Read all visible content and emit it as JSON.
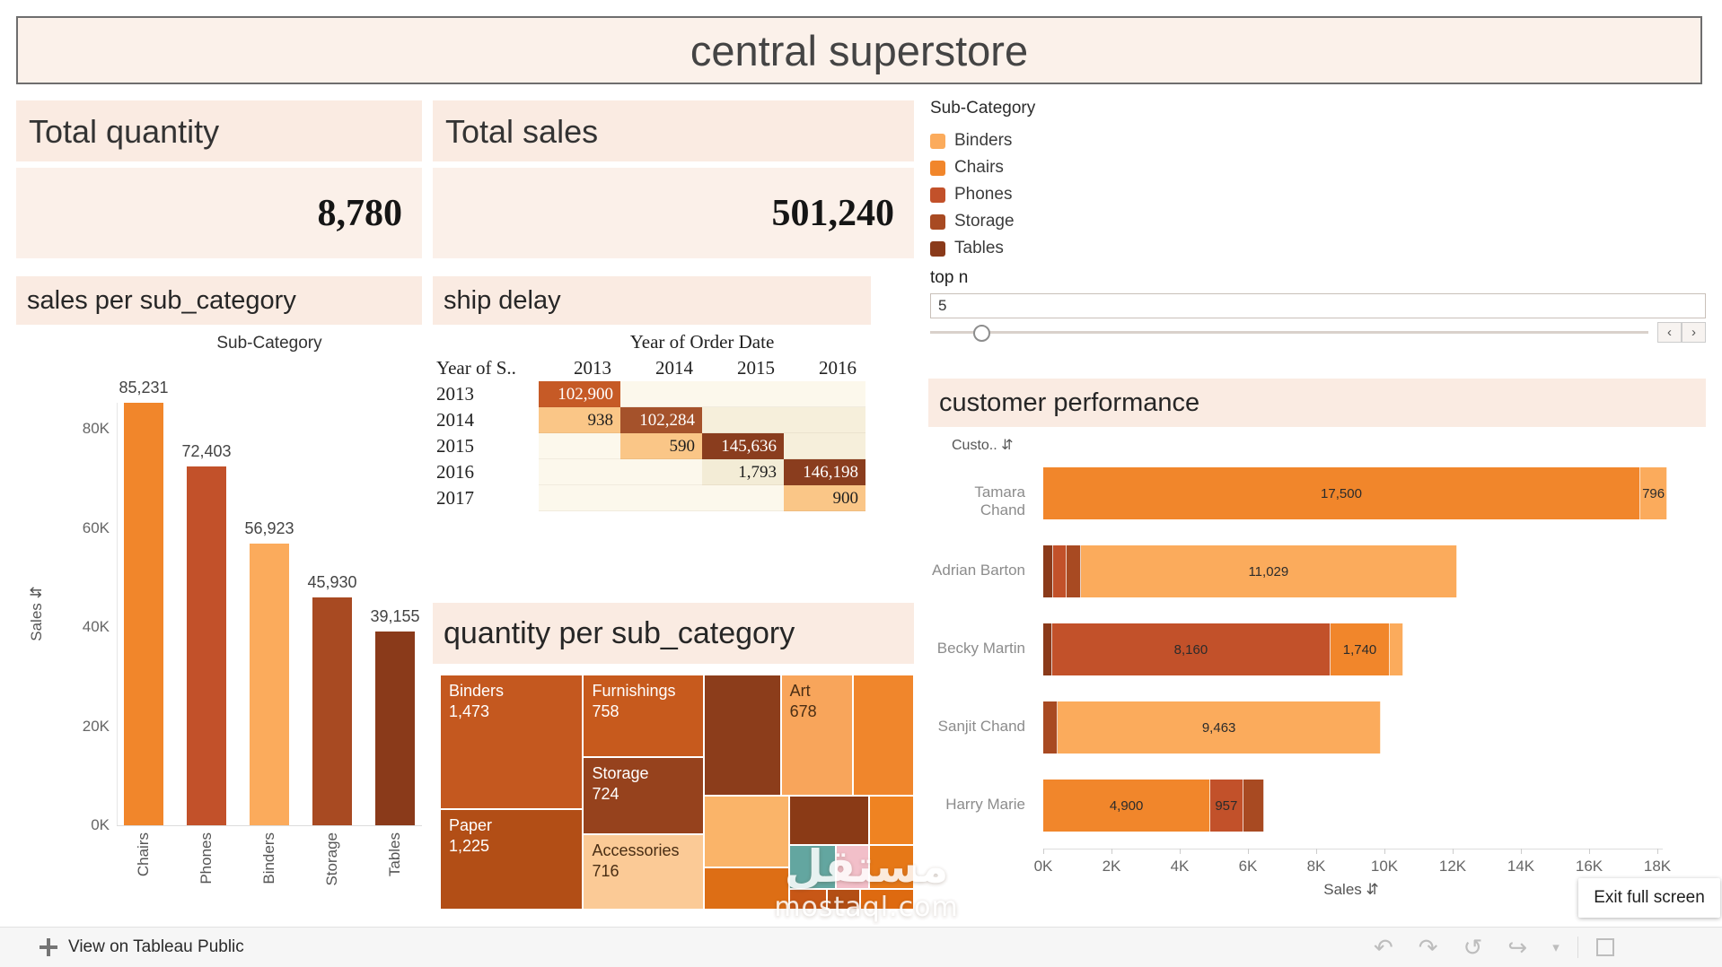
{
  "header": {
    "title": "central superstore"
  },
  "cards": [
    {
      "label": "Total quantity",
      "value": "8,780"
    },
    {
      "label": "Total sales",
      "value": "501,240"
    }
  ],
  "legend": {
    "title": "Sub-Category",
    "items": [
      {
        "label": "Binders",
        "color": "#FBAB5C"
      },
      {
        "label": "Chairs",
        "color": "#F1862B"
      },
      {
        "label": "Phones",
        "color": "#C2512A"
      },
      {
        "label": "Storage",
        "color": "#A84A22"
      },
      {
        "label": "Tables",
        "color": "#8A3A1A"
      }
    ]
  },
  "top_n": {
    "label": "top n",
    "value": "5",
    "slider_percent": 7
  },
  "icons": {
    "sort": "⇵",
    "slider_left": "‹",
    "slider_right": "›"
  },
  "chart_data": [
    {
      "id": "sales_per_subcategory",
      "type": "bar",
      "title": "sales per sub_category",
      "top_axis_label": "Sub-Category",
      "ylabel": "Sales",
      "ylim": [
        0,
        86000
      ],
      "yticks": [
        {
          "label": "80K",
          "value": 80000
        },
        {
          "label": "60K",
          "value": 60000
        },
        {
          "label": "40K",
          "value": 40000
        },
        {
          "label": "20K",
          "value": 20000
        },
        {
          "label": "0K",
          "value": 0
        }
      ],
      "bars": [
        {
          "category": "Chairs",
          "value": 85231,
          "label": "85,231"
        },
        {
          "category": "Phones",
          "value": 72403,
          "label": "72,403"
        },
        {
          "category": "Binders",
          "value": 56923,
          "label": "56,923"
        },
        {
          "category": "Storage",
          "value": 45930,
          "label": "45,930"
        },
        {
          "category": "Tables",
          "value": 39155,
          "label": "39,155"
        }
      ]
    },
    {
      "id": "ship_delay",
      "type": "table",
      "title": "ship delay",
      "column_group_label": "Year of Order Date",
      "row_header_label": "Year of S..",
      "columns": [
        "2013",
        "2014",
        "2015",
        "2016"
      ],
      "rows": [
        {
          "label": "2013",
          "cells": [
            {
              "text": "102,900",
              "bg": "#C65A26",
              "fg": "#FFFFFF"
            },
            {
              "text": "",
              "bg": "#FCF8EC"
            },
            {
              "text": "",
              "bg": "#FCF8EC"
            },
            {
              "text": "",
              "bg": "#FCF8EC"
            }
          ]
        },
        {
          "label": "2014",
          "cells": [
            {
              "text": "938",
              "bg": "#FAC687",
              "fg": "#1E1E1E"
            },
            {
              "text": "102,284",
              "bg": "#A5522B",
              "fg": "#FFFFFF"
            },
            {
              "text": "",
              "bg": "#F6EFDB"
            },
            {
              "text": "",
              "bg": "#F6EFDB"
            }
          ]
        },
        {
          "label": "2015",
          "cells": [
            {
              "text": "",
              "bg": "#FCF8EC"
            },
            {
              "text": "590",
              "bg": "#FAC687",
              "fg": "#1E1E1E"
            },
            {
              "text": "145,636",
              "bg": "#8A3D1E",
              "fg": "#FFFFFF"
            },
            {
              "text": "",
              "bg": "#F6EFDB"
            }
          ]
        },
        {
          "label": "2016",
          "cells": [
            {
              "text": "",
              "bg": "#FCF8EC"
            },
            {
              "text": "",
              "bg": "#FCF8EC"
            },
            {
              "text": "1,793",
              "bg": "#F3ECD6",
              "fg": "#1E1E1E"
            },
            {
              "text": "146,198",
              "bg": "#8A3D1E",
              "fg": "#FFFFFF"
            }
          ]
        },
        {
          "label": "2017",
          "cells": [
            {
              "text": "",
              "bg": "#FCF8EC"
            },
            {
              "text": "",
              "bg": "#FCF8EC"
            },
            {
              "text": "",
              "bg": "#FCF8EC"
            },
            {
              "text": "900",
              "bg": "#FAC687",
              "fg": "#1E1E1E"
            }
          ]
        }
      ]
    },
    {
      "id": "quantity_per_subcategory",
      "type": "treemap",
      "title": "quantity per sub_category",
      "tiles": [
        {
          "label": "Binders",
          "value": "1,473",
          "x": 0,
          "y": 0,
          "w": 30.2,
          "h": 57.3,
          "color": "#C4581F",
          "fg": "#FFFFFF"
        },
        {
          "label": "Paper",
          "value": "1,225",
          "x": 0,
          "y": 57.3,
          "w": 30.2,
          "h": 42.7,
          "color": "#B24E16",
          "fg": "#FFFFFF"
        },
        {
          "label": "Furnishings",
          "value": "758",
          "x": 30.2,
          "y": 0,
          "w": 25.5,
          "h": 35.2,
          "color": "#C75A1D",
          "fg": "#FFFFFF"
        },
        {
          "label": "Storage",
          "value": "724",
          "x": 30.2,
          "y": 35.2,
          "w": 25.5,
          "h": 32.9,
          "color": "#96421D",
          "fg": "#FFFFFF"
        },
        {
          "label": "Accessories",
          "value": "716",
          "x": 30.2,
          "y": 68.1,
          "w": 25.5,
          "h": 31.9,
          "color": "#FBCA96",
          "fg": "#4A2E14"
        },
        {
          "x": 55.7,
          "y": 0,
          "w": 16.2,
          "h": 51.6,
          "color": "#8C3D1B"
        },
        {
          "label": "Art",
          "value": "678",
          "x": 71.9,
          "y": 0,
          "w": 15.2,
          "h": 51.6,
          "color": "#F8A55B",
          "fg": "#4A2E14"
        },
        {
          "x": 87.1,
          "y": 0,
          "w": 12.9,
          "h": 51.6,
          "color": "#F0862C"
        },
        {
          "x": 55.7,
          "y": 51.6,
          "w": 18.0,
          "h": 30.5,
          "color": "#FAB469"
        },
        {
          "x": 73.7,
          "y": 51.6,
          "w": 16.8,
          "h": 21.1,
          "color": "#8A3A16"
        },
        {
          "x": 90.5,
          "y": 51.6,
          "w": 9.5,
          "h": 21.1,
          "color": "#EF8322"
        },
        {
          "x": 55.7,
          "y": 82.1,
          "w": 18.0,
          "h": 17.9,
          "color": "#DD6E15"
        },
        {
          "x": 73.7,
          "y": 72.7,
          "w": 9.9,
          "h": 18.7,
          "color": "#63A6A0"
        },
        {
          "x": 83.6,
          "y": 72.7,
          "w": 6.9,
          "h": 18.7,
          "color": "#F2BFC9"
        },
        {
          "x": 90.5,
          "y": 72.7,
          "w": 9.5,
          "h": 18.7,
          "color": "#E67817"
        },
        {
          "x": 73.7,
          "y": 91.4,
          "w": 8.0,
          "h": 8.6,
          "color": "#C85716"
        },
        {
          "x": 81.7,
          "y": 91.4,
          "w": 6.9,
          "h": 8.6,
          "color": "#B34E14"
        },
        {
          "x": 88.6,
          "y": 91.4,
          "w": 11.4,
          "h": 8.6,
          "color": "#DE6A10"
        }
      ]
    },
    {
      "id": "customer_performance",
      "type": "stacked_bar",
      "title": "customer performance",
      "column_header": "Custo..",
      "xlabel": "Sales",
      "xlim": [
        0,
        18600
      ],
      "xticks": [
        {
          "label": "0K",
          "value": 0
        },
        {
          "label": "2K",
          "value": 2000
        },
        {
          "label": "4K",
          "value": 4000
        },
        {
          "label": "6K",
          "value": 6000
        },
        {
          "label": "8K",
          "value": 8000
        },
        {
          "label": "10K",
          "value": 10000
        },
        {
          "label": "12K",
          "value": 12000
        },
        {
          "label": "14K",
          "value": 14000
        },
        {
          "label": "16K",
          "value": 16000
        },
        {
          "label": "18K",
          "value": 18000
        }
      ],
      "rows": [
        {
          "name": "Tamara Chand",
          "segments": [
            {
              "category": "Chairs",
              "value": 17500,
              "label": "17,500"
            },
            {
              "category": "Binders",
              "value": 796,
              "label": "796"
            }
          ]
        },
        {
          "name": "Adrian Barton",
          "segments": [
            {
              "category": "Tables",
              "value": 300
            },
            {
              "category": "Phones",
              "value": 380
            },
            {
              "category": "Storage",
              "value": 420
            },
            {
              "category": "Binders",
              "value": 11029,
              "label": "11,029"
            }
          ]
        },
        {
          "name": "Becky Martin",
          "segments": [
            {
              "category": "Tables",
              "value": 260
            },
            {
              "category": "Phones",
              "value": 8160,
              "label": "8,160"
            },
            {
              "category": "Chairs",
              "value": 1740,
              "label": "1,740"
            },
            {
              "category": "Binders",
              "value": 380
            }
          ]
        },
        {
          "name": "Sanjit Chand",
          "segments": [
            {
              "category": "Storage",
              "value": 430
            },
            {
              "category": "Binders",
              "value": 9463,
              "label": "9,463"
            }
          ]
        },
        {
          "name": "Harry Marie",
          "segments": [
            {
              "category": "Chairs",
              "value": 4900,
              "label": "4,900"
            },
            {
              "category": "Phones",
              "value": 957,
              "label": "957"
            },
            {
              "category": "Storage",
              "value": 620
            }
          ]
        }
      ]
    }
  ],
  "footer": {
    "left_label": "View on Tableau Public",
    "exit_button": "Exit full screen",
    "icons": [
      {
        "name": "undo-icon",
        "glyph": "↶"
      },
      {
        "name": "redo-icon",
        "glyph": "↷"
      },
      {
        "name": "replay-icon",
        "glyph": "↺"
      },
      {
        "name": "share-icon",
        "glyph": "↪"
      },
      {
        "name": "caret-down-icon",
        "glyph": "▾"
      }
    ]
  },
  "watermark": {
    "logo_text": "مستقل",
    "domain": "mostaql.com"
  }
}
